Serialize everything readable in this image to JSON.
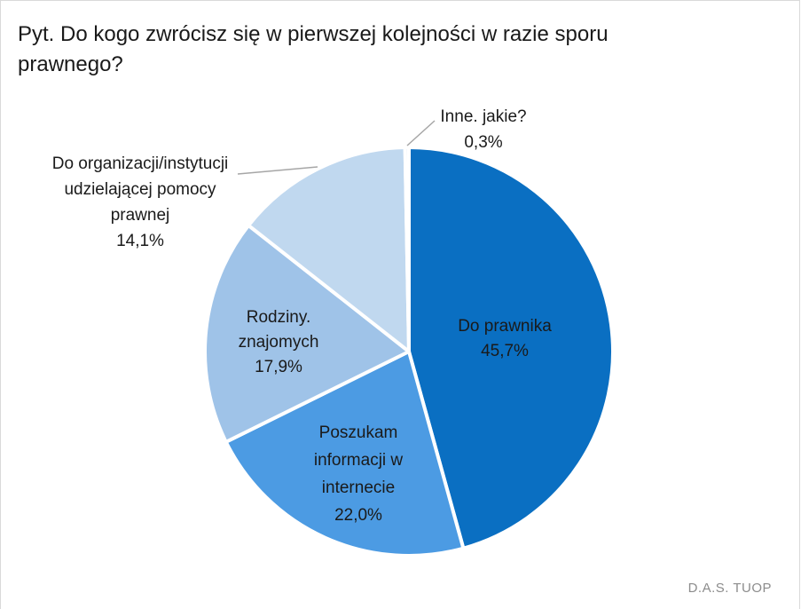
{
  "chart_data": {
    "type": "pie",
    "title": "Pyt. Do kogo zwrócisz się w pierwszej kolejności w razie sporu prawnego?",
    "slices": [
      {
        "label_lines": [
          "Do prawnika"
        ],
        "value": 45.7,
        "value_label": "45,7%",
        "color": "#0a6fc2"
      },
      {
        "label_lines": [
          "Poszukam",
          "informacji w",
          "internecie"
        ],
        "value": 22.0,
        "value_label": "22,0%",
        "color": "#4c9be3"
      },
      {
        "label_lines": [
          "Rodziny.",
          "znajomych"
        ],
        "value": 17.9,
        "value_label": "17,9%",
        "color": "#9fc3e8"
      },
      {
        "label_lines": [
          "Do organizacji/instytucji",
          "udzielającej pomocy",
          "prawnej"
        ],
        "value": 14.1,
        "value_label": "14,1%",
        "color": "#c0d8ef"
      },
      {
        "label_lines": [
          "Inne. jakie?"
        ],
        "value": 0.3,
        "value_label": "0,3%",
        "color": "#dbe8f5"
      }
    ],
    "start_angle_deg": 0,
    "direction": "clockwise",
    "source_note": "D.A.S. TUOP"
  }
}
